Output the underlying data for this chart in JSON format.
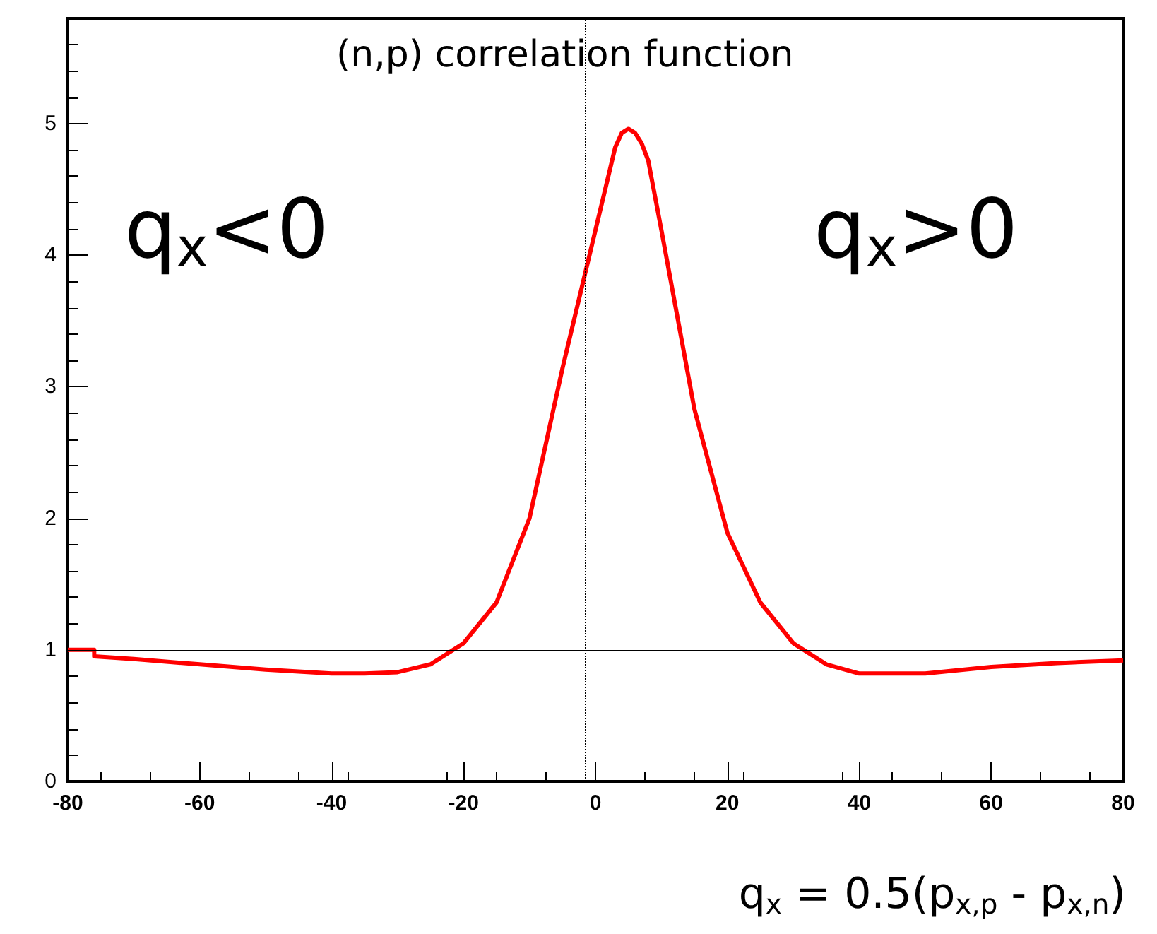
{
  "chart_data": {
    "type": "line",
    "title": "(n,p) correlation function",
    "xlabel": "q$_{x}$ = 0.5(p$_{x,p}$ - p$_{x,n}$)",
    "annotations": [
      "q$_{x}$<0",
      "q$_{x}$>0"
    ],
    "xlim": [
      -80,
      80
    ],
    "xticks": [
      -80,
      -60,
      -40,
      -20,
      0,
      20,
      40,
      60,
      80
    ],
    "ylim": [
      0,
      5.8
    ],
    "yticks": [
      0,
      1,
      2,
      3,
      4,
      5
    ],
    "grid": false,
    "marker": "none",
    "line_style": "solid",
    "ref_lines": [
      {
        "axis": "y",
        "value": 1,
        "color": "#000000",
        "line_style": "solid"
      },
      {
        "axis": "x",
        "value": -1.5,
        "color": "#000000",
        "line_style": "dotted"
      }
    ],
    "series": [
      {
        "color": "#ff0000",
        "x": [
          -80,
          -76,
          -76,
          -70,
          -60,
          -50,
          -40,
          -35,
          -30,
          -25,
          -20,
          -15,
          -10,
          -5,
          0,
          3,
          4,
          5,
          6,
          7,
          8,
          10,
          15,
          20,
          25,
          30,
          35,
          40,
          50,
          60,
          70,
          80
        ],
        "values": [
          1.0,
          1.0,
          0.95,
          0.93,
          0.89,
          0.85,
          0.82,
          0.82,
          0.83,
          0.89,
          1.05,
          1.36,
          2.0,
          3.14,
          4.19,
          4.82,
          4.93,
          4.96,
          4.93,
          4.85,
          4.72,
          4.19,
          2.83,
          1.89,
          1.36,
          1.05,
          0.89,
          0.82,
          0.82,
          0.87,
          0.9,
          0.92
        ]
      }
    ]
  }
}
